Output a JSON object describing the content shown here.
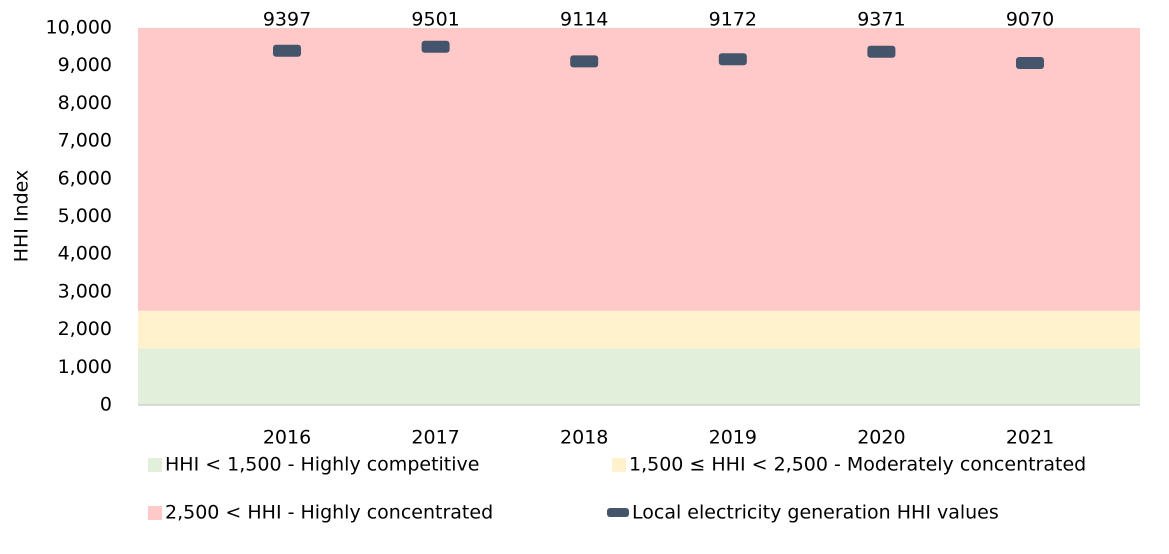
{
  "chart_data": {
    "type": "marker",
    "y_label": "HHI Index",
    "categories": [
      "2016",
      "2017",
      "2018",
      "2019",
      "2020",
      "2021"
    ],
    "zones": [
      {
        "name": "HHI < 1,500 - Highly competitive",
        "from": 0,
        "to": 1500,
        "color": "#e2efda"
      },
      {
        "name": "1,500 ≤ HHI < 2,500 - Moderately concentrated",
        "from": 1500,
        "to": 2500,
        "color": "#fff2cc"
      },
      {
        "name": "2,500 < HHI - Highly concentrated",
        "from": 2500,
        "to": 10000,
        "color": "#ffc9c9"
      }
    ],
    "series": [
      {
        "name": "Local electricity generation HHI values",
        "color": "#44546a",
        "values": [
          9397,
          9501,
          9114,
          9172,
          9371,
          9070
        ]
      }
    ],
    "ylim": [
      0,
      10000
    ],
    "yticks": [
      0,
      {
        "value": 1000,
        "label": "1,000"
      },
      {
        "value": 2000,
        "label": "2,000"
      },
      {
        "value": 3000,
        "label": "3,000"
      },
      {
        "value": 4000,
        "label": "4,000"
      },
      {
        "value": 5000,
        "label": "5,000"
      },
      {
        "value": 6000,
        "label": "6,000"
      },
      {
        "value": 7000,
        "label": "7,000"
      },
      {
        "value": 8000,
        "label": "8,000"
      },
      {
        "value": 9000,
        "label": "9,000"
      },
      {
        "value": 10000,
        "label": "10,000"
      }
    ]
  }
}
